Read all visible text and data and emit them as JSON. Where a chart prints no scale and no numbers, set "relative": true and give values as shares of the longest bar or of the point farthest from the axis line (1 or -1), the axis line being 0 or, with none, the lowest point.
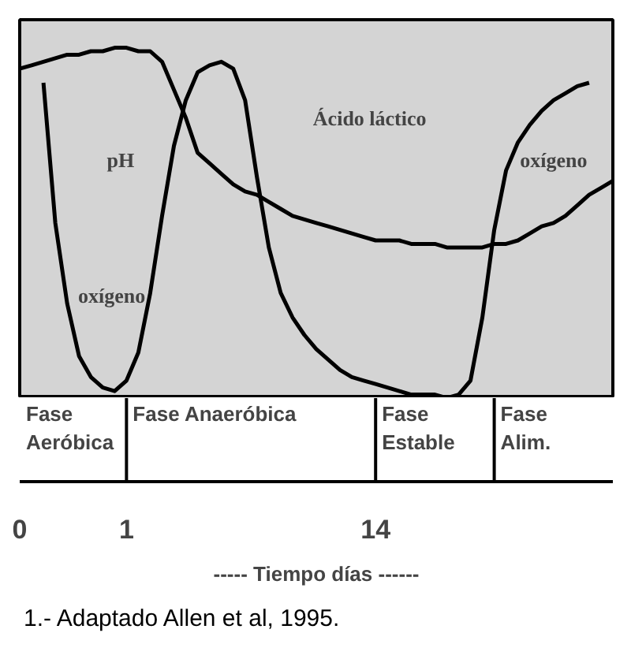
{
  "chart_data": {
    "type": "line",
    "relative": true,
    "xlabel": "----- Tiempo días ------",
    "categories": [
      "0",
      null,
      null,
      null,
      null,
      null,
      null,
      null,
      null,
      "1",
      null,
      null,
      null,
      null,
      null,
      null,
      null,
      null,
      null,
      null,
      null,
      null,
      null,
      null,
      null,
      null,
      null,
      null,
      null,
      null,
      "14",
      null,
      null,
      null,
      null,
      null,
      null,
      null,
      null,
      null,
      null,
      null,
      null,
      null,
      null,
      null,
      null,
      null,
      null,
      null,
      null
    ],
    "series": [
      {
        "color": "#000000",
        "values": [
          0.94,
          0.95,
          0.96,
          0.97,
          0.98,
          0.98,
          0.99,
          0.99,
          1,
          1,
          0.99,
          0.99,
          0.96,
          0.88,
          0.8,
          0.7,
          0.67,
          0.64,
          0.61,
          0.59,
          0.58,
          0.56,
          0.54,
          0.52,
          0.51,
          0.5,
          0.49,
          0.48,
          0.47,
          0.46,
          0.45,
          0.45,
          0.45,
          0.44,
          0.44,
          0.44,
          0.43,
          0.43,
          0.43,
          0.43,
          0.44,
          0.44,
          0.45,
          0.47,
          0.49,
          0.5,
          0.52,
          0.55,
          0.58,
          0.6,
          0.62
        ]
      },
      {
        "color": "#000000",
        "values": [
          null,
          null,
          0.9,
          0.5,
          0.27,
          0.12,
          0.06,
          0.03,
          0.02,
          0.05,
          0.13,
          0.3,
          0.52,
          0.72,
          0.85,
          0.93,
          0.95,
          0.96,
          0.94,
          0.85,
          0.63,
          0.43,
          0.3,
          0.23,
          0.18,
          0.14,
          0.11,
          0.08,
          0.06,
          0.05,
          0.04,
          0.03,
          0.02,
          0.01,
          0.01,
          0.01,
          0,
          0.01,
          0.05,
          0.23,
          0.48,
          0.65,
          0.73,
          0.78,
          0.82,
          0.85,
          0.87,
          0.89,
          0.9,
          null,
          null
        ]
      }
    ],
    "annotations": [
      "pH",
      "oxígeno",
      "Ácido láctico",
      "oxígeno",
      "Fase\nAeróbica",
      "Fase Anaeróbica",
      "Fase\nEstable",
      "Fase\nAlim.",
      "1.- Adaptado Allen et al, 1995."
    ],
    "grid": false
  }
}
